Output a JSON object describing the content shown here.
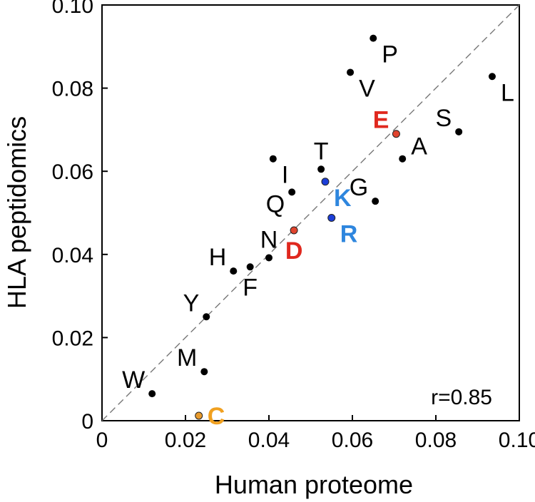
{
  "chart_data": {
    "type": "scatter",
    "xlabel": "Human proteome",
    "ylabel": "HLA peptidomics",
    "xlim": [
      0,
      0.1
    ],
    "ylim": [
      0,
      0.1
    ],
    "xticks": [
      "0",
      "0.02",
      "0.04",
      "0.06",
      "0.08",
      "0.10"
    ],
    "yticks": [
      "0",
      "0.02",
      "0.04",
      "0.06",
      "0.08",
      "0.10"
    ],
    "xtick_values": [
      0,
      0.02,
      0.04,
      0.06,
      0.08,
      0.1
    ],
    "ytick_values": [
      0,
      0.02,
      0.04,
      0.06,
      0.08,
      0.1
    ],
    "grid": false,
    "reference_line": "y = x (dashed)",
    "annotation": "r=0.85",
    "points": [
      {
        "label": "P",
        "x": 0.065,
        "y": 0.092,
        "color": "#000000",
        "label_color": "#000000",
        "label_pos": "below-right",
        "bold": false
      },
      {
        "label": "V",
        "x": 0.0595,
        "y": 0.0838,
        "color": "#000000",
        "label_color": "#000000",
        "label_pos": "below-right",
        "bold": false
      },
      {
        "label": "L",
        "x": 0.0935,
        "y": 0.0828,
        "color": "#000000",
        "label_color": "#000000",
        "label_pos": "below-right",
        "bold": false
      },
      {
        "label": "E",
        "x": 0.0705,
        "y": 0.069,
        "color": "#e0442e",
        "label_color": "#e0281e",
        "label_pos": "above-left",
        "bold": true
      },
      {
        "label": "S",
        "x": 0.0855,
        "y": 0.0695,
        "color": "#000000",
        "label_color": "#000000",
        "label_pos": "above-left",
        "bold": false
      },
      {
        "label": "A",
        "x": 0.072,
        "y": 0.063,
        "color": "#000000",
        "label_color": "#000000",
        "label_pos": "above-right",
        "bold": false
      },
      {
        "label": "T",
        "x": 0.0525,
        "y": 0.0605,
        "color": "#000000",
        "label_color": "#000000",
        "label_pos": "above",
        "bold": false
      },
      {
        "label": "I",
        "x": 0.041,
        "y": 0.063,
        "color": "#000000",
        "label_color": "#000000",
        "label_pos": "below-right",
        "bold": false
      },
      {
        "label": "K",
        "x": 0.0535,
        "y": 0.0575,
        "color": "#1c3ed8",
        "label_color": "#2e86de",
        "label_pos": "below-right",
        "bold": true
      },
      {
        "label": "G",
        "x": 0.0655,
        "y": 0.0528,
        "color": "#000000",
        "label_color": "#000000",
        "label_pos": "above-left",
        "bold": false
      },
      {
        "label": "Q",
        "x": 0.0455,
        "y": 0.055,
        "color": "#000000",
        "label_color": "#000000",
        "label_pos": "below-left",
        "bold": false
      },
      {
        "label": "R",
        "x": 0.055,
        "y": 0.0488,
        "color": "#1c3ed8",
        "label_color": "#2e86de",
        "label_pos": "below-right",
        "bold": true
      },
      {
        "label": "D",
        "x": 0.046,
        "y": 0.0458,
        "color": "#e0442e",
        "label_color": "#e0281e",
        "label_pos": "below",
        "bold": true
      },
      {
        "label": "N",
        "x": 0.04,
        "y": 0.0392,
        "color": "#000000",
        "label_color": "#000000",
        "label_pos": "above",
        "bold": false
      },
      {
        "label": "H",
        "x": 0.0315,
        "y": 0.036,
        "color": "#000000",
        "label_color": "#000000",
        "label_pos": "above-left",
        "bold": false
      },
      {
        "label": "F",
        "x": 0.0355,
        "y": 0.037,
        "color": "#000000",
        "label_color": "#000000",
        "label_pos": "below",
        "bold": false
      },
      {
        "label": "Y",
        "x": 0.025,
        "y": 0.025,
        "color": "#000000",
        "label_color": "#000000",
        "label_pos": "above-left",
        "bold": false
      },
      {
        "label": "M",
        "x": 0.0245,
        "y": 0.0118,
        "color": "#000000",
        "label_color": "#000000",
        "label_pos": "above-left",
        "bold": false
      },
      {
        "label": "W",
        "x": 0.012,
        "y": 0.0065,
        "color": "#000000",
        "label_color": "#000000",
        "label_pos": "above-left",
        "bold": false
      },
      {
        "label": "C",
        "x": 0.0232,
        "y": 0.0012,
        "color": "#e89a2c",
        "label_color": "#f0a020",
        "label_pos": "right",
        "bold": true
      }
    ]
  }
}
